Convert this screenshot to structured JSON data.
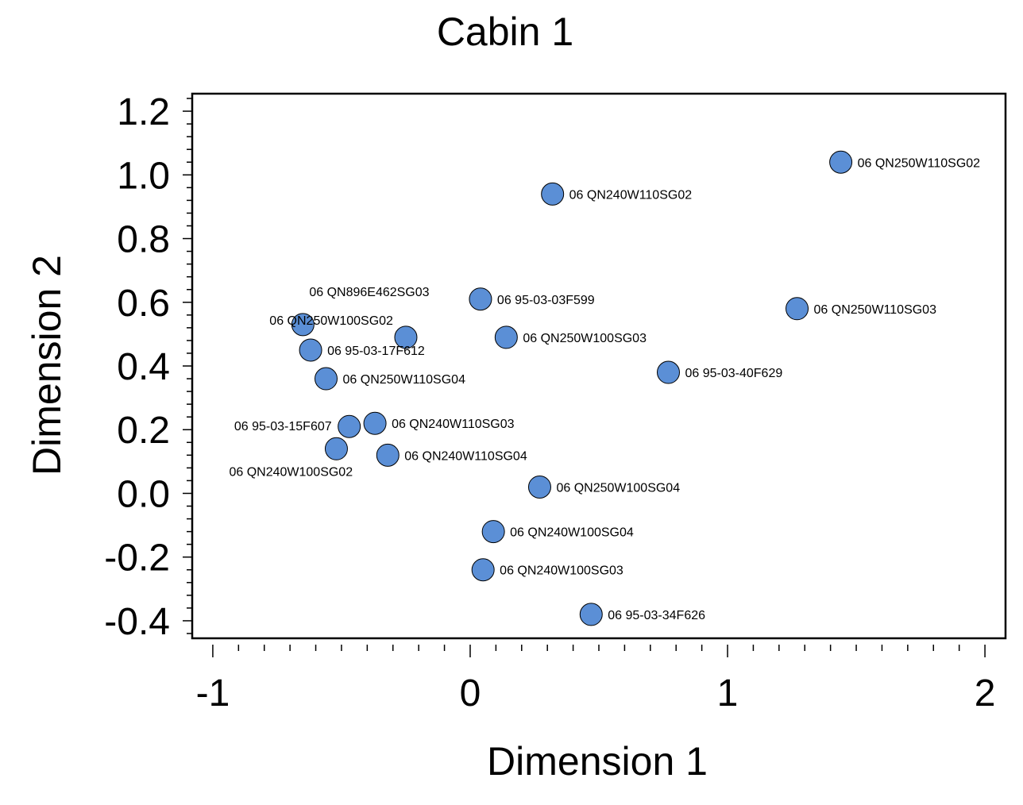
{
  "chart_data": {
    "type": "scatter",
    "title": "Cabin 1",
    "xlabel": "Dimension 1",
    "ylabel": "Dimension 2",
    "xlim": [
      -1.08,
      2.08
    ],
    "ylim": [
      -0.455,
      1.255
    ],
    "xticks": [
      {
        "value": -1,
        "label": "-1"
      },
      {
        "value": 0,
        "label": "0"
      },
      {
        "value": 1,
        "label": "1"
      },
      {
        "value": 2,
        "label": "2"
      }
    ],
    "yticks": [
      {
        "value": -0.4,
        "label": "-0.4"
      },
      {
        "value": -0.2,
        "label": "-0.2"
      },
      {
        "value": 0.0,
        "label": "0.0"
      },
      {
        "value": 0.2,
        "label": "0.2"
      },
      {
        "value": 0.4,
        "label": "0.4"
      },
      {
        "value": 0.6,
        "label": "0.6"
      },
      {
        "value": 0.8,
        "label": "0.8"
      },
      {
        "value": 1.0,
        "label": "1.0"
      },
      {
        "value": 1.2,
        "label": "1.2"
      }
    ],
    "grid": false,
    "marker_color": "#5b8fd6",
    "points": [
      {
        "x": 1.44,
        "y": 1.04,
        "label": "06  QN250W110SG02",
        "label_pos": "right"
      },
      {
        "x": 0.32,
        "y": 0.94,
        "label": "06  QN240W110SG02",
        "label_pos": "right"
      },
      {
        "x": 1.27,
        "y": 0.58,
        "label": "06  QN250W110SG03",
        "label_pos": "right"
      },
      {
        "x": 0.04,
        "y": 0.61,
        "label": "06  95-03-03F599",
        "label_pos": "right"
      },
      {
        "x": 0.14,
        "y": 0.49,
        "label": "06  QN250W100SG03",
        "label_pos": "right"
      },
      {
        "x": 0.77,
        "y": 0.38,
        "label": "06  95-03-40F629",
        "label_pos": "right"
      },
      {
        "x": -0.65,
        "y": 0.53,
        "label": "06  QN896E462SG03",
        "label_pos": "above-right"
      },
      {
        "x": -0.25,
        "y": 0.49,
        "label": "06  QN250W100SG02",
        "label_pos": "above-left"
      },
      {
        "x": -0.62,
        "y": 0.45,
        "label": "06  95-03-17F612",
        "label_pos": "right"
      },
      {
        "x": -0.56,
        "y": 0.36,
        "label": "06  QN250W110SG04",
        "label_pos": "right"
      },
      {
        "x": -0.47,
        "y": 0.21,
        "label": "06  95-03-15F607",
        "label_pos": "left"
      },
      {
        "x": -0.37,
        "y": 0.22,
        "label": "06  QN240W110SG03",
        "label_pos": "right"
      },
      {
        "x": -0.52,
        "y": 0.14,
        "label": "06  QN240W100SG02",
        "label_pos": "below"
      },
      {
        "x": -0.32,
        "y": 0.12,
        "label": "06  QN240W110SG04",
        "label_pos": "right"
      },
      {
        "x": 0.27,
        "y": 0.02,
        "label": "06  QN250W100SG04",
        "label_pos": "right"
      },
      {
        "x": 0.09,
        "y": -0.12,
        "label": "06  QN240W100SG04",
        "label_pos": "right"
      },
      {
        "x": 0.05,
        "y": -0.24,
        "label": "06  QN240W100SG03",
        "label_pos": "right"
      },
      {
        "x": 0.47,
        "y": -0.38,
        "label": "06  95-03-34F626",
        "label_pos": "right"
      }
    ]
  }
}
